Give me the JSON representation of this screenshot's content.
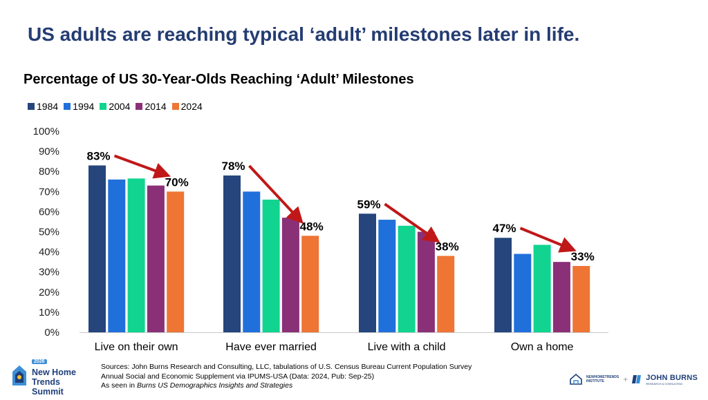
{
  "headline": "US adults are reaching typical ‘adult’ milestones later in life.",
  "chart_data": {
    "type": "bar",
    "title": "Percentage of US 30-Year-Olds Reaching ‘Adult’ Milestones",
    "xlabel": "",
    "ylabel": "",
    "categories": [
      "Live on their own",
      "Have ever married",
      "Live with a child",
      "Own a home"
    ],
    "series": [
      {
        "name": "1984",
        "color": "#25457c",
        "values": [
          83,
          78,
          59,
          47
        ]
      },
      {
        "name": "1994",
        "color": "#2070db",
        "values": [
          76,
          70,
          56,
          39
        ]
      },
      {
        "name": "2004",
        "color": "#10d490",
        "values": [
          76.5,
          66,
          53,
          43.5
        ]
      },
      {
        "name": "2014",
        "color": "#8a3077",
        "values": [
          73,
          57,
          50,
          35
        ]
      },
      {
        "name": "2024",
        "color": "#ee7534",
        "values": [
          70,
          48,
          38,
          33
        ]
      }
    ],
    "ylim": [
      0,
      100
    ],
    "yticks": [
      "0%",
      "10%",
      "20%",
      "30%",
      "40%",
      "50%",
      "60%",
      "70%",
      "80%",
      "90%",
      "100%"
    ],
    "data_labels": [
      {
        "category": 0,
        "series": 0,
        "text": "83%"
      },
      {
        "category": 0,
        "series": 4,
        "text": "70%"
      },
      {
        "category": 1,
        "series": 0,
        "text": "78%"
      },
      {
        "category": 1,
        "series": 4,
        "text": "48%"
      },
      {
        "category": 2,
        "series": 0,
        "text": "59%"
      },
      {
        "category": 2,
        "series": 4,
        "text": "38%"
      },
      {
        "category": 3,
        "series": 0,
        "text": "47%"
      },
      {
        "category": 3,
        "series": 4,
        "text": "33%"
      }
    ],
    "arrow_color": "#c01818",
    "legend_position": "top-left",
    "grid": false
  },
  "sources": {
    "line1": "Sources: John Burns Research and Consulting, LLC, tabulations of U.S. Census Bureau Current Population Survey",
    "line2": "Annual Social and Economic Supplement via IPUMS-USA (Data: 2024, Pub: Sep-25)",
    "line3_prefix": "As seen in ",
    "line3_italic": "Burns US Demographics Insights and Strategies"
  },
  "logos": {
    "summit_year": "2026",
    "summit_line1": "New Home",
    "summit_line2": "Trends Summit",
    "nht_name": "NEWHOMETRENDS",
    "nht_sub": "INSTITUTE",
    "plus": "+",
    "jb_name": "JOHN BURNS",
    "jb_sub": "RESEARCH & CONSULTING"
  }
}
